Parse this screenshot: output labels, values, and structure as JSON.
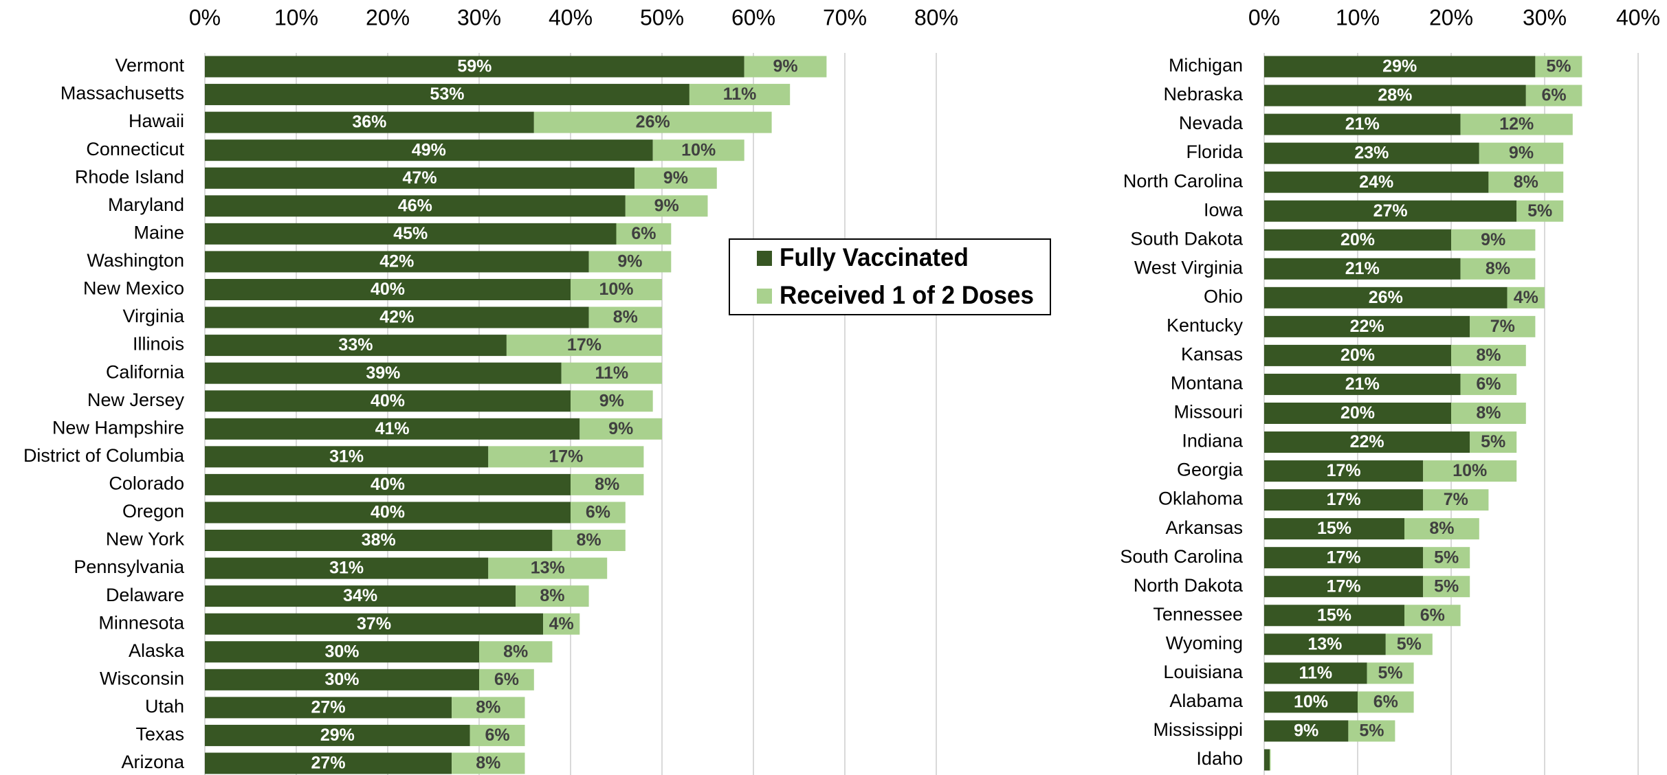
{
  "chart_data": [
    {
      "type": "stacked-barh",
      "categories": [
        "Vermont",
        "Massachusetts",
        "Hawaii",
        "Connecticut",
        "Rhode Island",
        "Maryland",
        "Maine",
        "Washington",
        "New Mexico",
        "Virginia",
        "Illinois",
        "California",
        "New Jersey",
        "New Hampshire",
        "District of Columbia",
        "Colorado",
        "Oregon",
        "New York",
        "Pennsylvania",
        "Delaware",
        "Minnesota",
        "Alaska",
        "Wisconsin",
        "Utah",
        "Texas",
        "Arizona"
      ],
      "series": [
        {
          "name": "Fully Vaccinated",
          "color": "#375623",
          "values": [
            59,
            53,
            36,
            49,
            47,
            46,
            45,
            42,
            40,
            42,
            33,
            39,
            40,
            41,
            31,
            40,
            40,
            38,
            31,
            34,
            37,
            30,
            30,
            27,
            29,
            27
          ],
          "value_labels": [
            "59%",
            "53%",
            "36%",
            "49%",
            "47%",
            "46%",
            "45%",
            "42%",
            "40%",
            "42%",
            "33%",
            "39%",
            "40%",
            "41%",
            "31%",
            "40%",
            "40%",
            "38%",
            "31%",
            "34%",
            "37%",
            "30%",
            "30%",
            "27%",
            "29%",
            "27%"
          ]
        },
        {
          "name": "Received 1 of 2 Doses",
          "color": "#a9d18e",
          "values": [
            9,
            11,
            26,
            10,
            9,
            9,
            6,
            9,
            10,
            8,
            17,
            11,
            9,
            9,
            17,
            8,
            6,
            8,
            13,
            8,
            4,
            8,
            6,
            8,
            6,
            8
          ],
          "value_labels": [
            "9%",
            "11%",
            "26%",
            "10%",
            "9%",
            "9%",
            "6%",
            "9%",
            "10%",
            "8%",
            "17%",
            "11%",
            "9%",
            "9%",
            "17%",
            "8%",
            "6%",
            "8%",
            "13%",
            "8%",
            "4%",
            "8%",
            "6%",
            "8%",
            "6%",
            "8%"
          ]
        }
      ],
      "xlim": [
        0,
        80
      ],
      "xticks": [
        {
          "value": 0,
          "label": "0%"
        },
        {
          "value": 10,
          "label": "10%"
        },
        {
          "value": 20,
          "label": "20%"
        },
        {
          "value": 30,
          "label": "30%"
        },
        {
          "value": 40,
          "label": "40%"
        },
        {
          "value": 50,
          "label": "50%"
        },
        {
          "value": 60,
          "label": "60%"
        },
        {
          "value": 70,
          "label": "70%"
        },
        {
          "value": 80,
          "label": "80%"
        }
      ],
      "grid": true,
      "legend": "center right"
    },
    {
      "type": "stacked-barh",
      "categories": [
        "Michigan",
        "Nebraska",
        "Nevada",
        "Florida",
        "North Carolina",
        "Iowa",
        "South Dakota",
        "West Virginia",
        "Ohio",
        "Kentucky",
        "Kansas",
        "Montana",
        "Missouri",
        "Indiana",
        "Georgia",
        "Oklahoma",
        "Arkansas",
        "South Carolina",
        "North Dakota",
        "Tennessee",
        "Wyoming",
        "Louisiana",
        "Alabama",
        "Mississippi",
        "Idaho"
      ],
      "series": [
        {
          "color": "#375623",
          "values": [
            29,
            28,
            21,
            23,
            24,
            27,
            20,
            21,
            26,
            22,
            20,
            21,
            20,
            22,
            17,
            17,
            15,
            17,
            17,
            15,
            13,
            11,
            10,
            9,
            0.6
          ],
          "value_labels": [
            "29%",
            "28%",
            "21%",
            "23%",
            "24%",
            "27%",
            "20%",
            "21%",
            "26%",
            "22%",
            "20%",
            "21%",
            "20%",
            "22%",
            "17%",
            "17%",
            "15%",
            "17%",
            "17%",
            "15%",
            "13%",
            "11%",
            "10%",
            "9%",
            null
          ]
        },
        {
          "color": "#a9d18e",
          "values": [
            5,
            6,
            12,
            9,
            8,
            5,
            9,
            8,
            4,
            7,
            8,
            6,
            8,
            5,
            10,
            7,
            8,
            5,
            5,
            6,
            5,
            5,
            6,
            5,
            0.1
          ],
          "value_labels": [
            "5%",
            "6%",
            "12%",
            "9%",
            "8%",
            "5%",
            "9%",
            "8%",
            "4%",
            "7%",
            "8%",
            "6%",
            "8%",
            "5%",
            "10%",
            "7%",
            "8%",
            "5%",
            "5%",
            "6%",
            "5%",
            "5%",
            "6%",
            "5%",
            null
          ]
        }
      ],
      "xlim": [
        0,
        40
      ],
      "xticks": [
        {
          "value": 0,
          "label": "0%"
        },
        {
          "value": 10,
          "label": "10%"
        },
        {
          "value": 20,
          "label": "20%"
        },
        {
          "value": 30,
          "label": "30%"
        },
        {
          "value": 40,
          "label": "40%"
        }
      ],
      "grid": true
    }
  ]
}
